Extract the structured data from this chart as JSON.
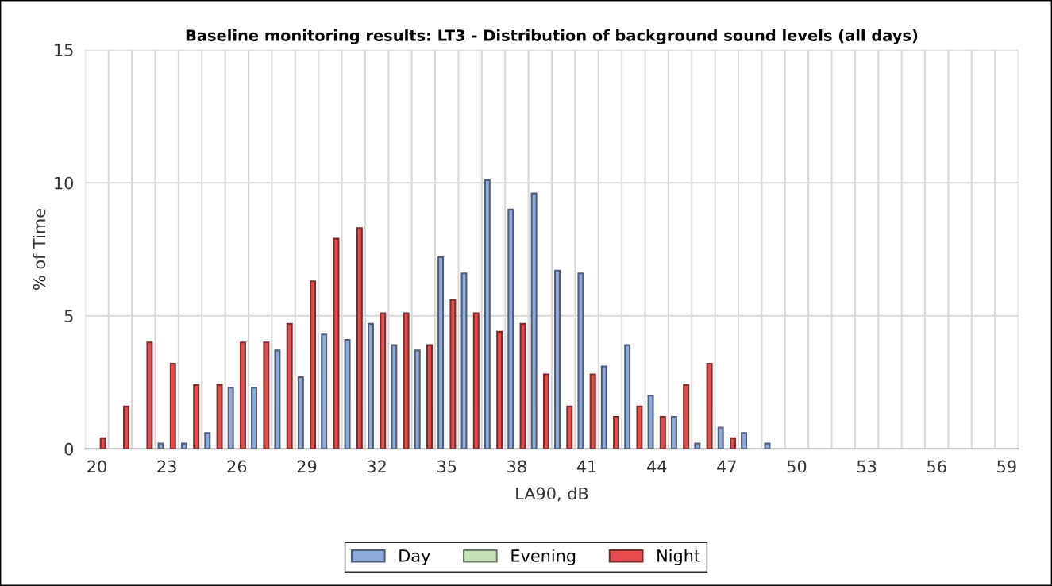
{
  "chart_data": {
    "type": "bar",
    "title": "Baseline monitoring results: LT3 - Distribution of background sound levels (all days)",
    "xlabel": "LA90, dB",
    "ylabel": "% of Time",
    "categories": [
      "20",
      null,
      null,
      "23",
      null,
      null,
      "26",
      null,
      null,
      "29",
      null,
      null,
      "32",
      null,
      null,
      "35",
      null,
      null,
      "38",
      null,
      null,
      "41",
      null,
      null,
      "44",
      null,
      null,
      "47",
      null,
      null,
      "50",
      null,
      null,
      "53",
      null,
      null,
      "56",
      null,
      null,
      "59"
    ],
    "series": [
      {
        "name": "Day",
        "color": "#8faadc",
        "values": [
          0,
          0,
          0,
          0.2,
          0.2,
          0.6,
          2.3,
          2.3,
          3.7,
          2.7,
          4.3,
          4.1,
          4.7,
          3.9,
          3.7,
          7.2,
          6.6,
          10.1,
          9.0,
          9.6,
          6.7,
          6.6,
          3.1,
          3.9,
          2.0,
          1.2,
          0.2,
          0.8,
          0.6,
          0.2,
          0,
          0,
          0,
          0,
          0,
          0,
          0,
          0,
          0,
          0
        ]
      },
      {
        "name": "Evening",
        "color": "#c5e0b4",
        "values": [
          0,
          0,
          0,
          0,
          0,
          0,
          0,
          0,
          0,
          0,
          0,
          0,
          0,
          0,
          0,
          0,
          0,
          0,
          0,
          0,
          0,
          0,
          0,
          0,
          0,
          0,
          0,
          0,
          0,
          0,
          0,
          0,
          0,
          0,
          0,
          0,
          0,
          0,
          0,
          0
        ]
      },
      {
        "name": "Night",
        "color": "#e84c4c",
        "values": [
          0.4,
          1.6,
          4.0,
          3.2,
          2.4,
          2.4,
          4.0,
          4.0,
          4.7,
          6.3,
          7.9,
          8.3,
          5.1,
          5.1,
          3.9,
          5.6,
          5.1,
          4.4,
          4.7,
          2.8,
          1.6,
          2.8,
          1.2,
          1.6,
          1.2,
          2.4,
          3.2,
          0.4,
          0,
          0,
          0,
          0,
          0,
          0,
          0,
          0,
          0,
          0,
          0,
          0
        ]
      }
    ],
    "ylim": [
      0,
      15
    ],
    "yticks": [
      0,
      5,
      10,
      15
    ],
    "grid": true,
    "legend": "bottom"
  }
}
